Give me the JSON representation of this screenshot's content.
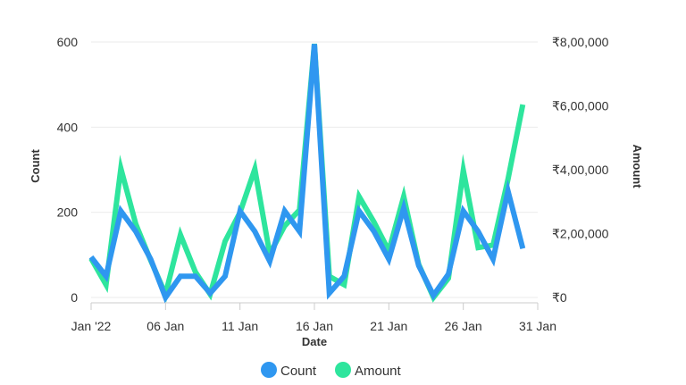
{
  "chart_data": {
    "type": "line",
    "xlabel": "Date",
    "ylabel_left": "Count",
    "ylabel_right": "Amount",
    "x_tick_labels": [
      "Jan '22",
      "06 Jan",
      "11 Jan",
      "16 Jan",
      "21 Jan",
      "26 Jan",
      "31 Jan"
    ],
    "y_left_ticks": [
      "0",
      "200",
      "400",
      "600"
    ],
    "y_right_ticks": [
      "₹0",
      "₹2,00,000",
      "₹4,00,000",
      "₹6,00,000",
      "₹8,00,000"
    ],
    "ylim_left": [
      0,
      600
    ],
    "ylim_right": [
      0,
      800000
    ],
    "x": [
      "2022-01-01",
      "2022-01-02",
      "2022-01-03",
      "2022-01-04",
      "2022-01-05",
      "2022-01-06",
      "2022-01-07",
      "2022-01-08",
      "2022-01-09",
      "2022-01-10",
      "2022-01-11",
      "2022-01-12",
      "2022-01-13",
      "2022-01-14",
      "2022-01-15",
      "2022-01-16",
      "2022-01-17",
      "2022-01-18",
      "2022-01-19",
      "2022-01-20",
      "2022-01-21",
      "2022-01-22",
      "2022-01-23",
      "2022-01-24",
      "2022-01-25",
      "2022-01-26",
      "2022-01-27",
      "2022-01-28",
      "2022-01-29",
      "2022-01-30",
      "2022-01-31"
    ],
    "grid": "horizontal",
    "legend_position": "bottom-center",
    "series": [
      {
        "name": "Amount",
        "axis": "right",
        "color": "#2ee59d",
        "values": [
          122000,
          40000,
          404000,
          230000,
          116000,
          10000,
          196000,
          80000,
          10000,
          176000,
          266000,
          402000,
          136000,
          224000,
          274000,
          794000,
          66000,
          40000,
          316000,
          236000,
          146000,
          316000,
          104000,
          0,
          60000,
          398000,
          156000,
          164000,
          370000,
          604000,
          null
        ]
      },
      {
        "name": "Count",
        "axis": "left",
        "color": "#2f97f0",
        "values": [
          95,
          50,
          203,
          155,
          90,
          0,
          50,
          50,
          10,
          50,
          203,
          155,
          85,
          203,
          155,
          595,
          10,
          50,
          203,
          155,
          90,
          210,
          75,
          5,
          55,
          203,
          155,
          90,
          250,
          115,
          null
        ]
      }
    ]
  }
}
